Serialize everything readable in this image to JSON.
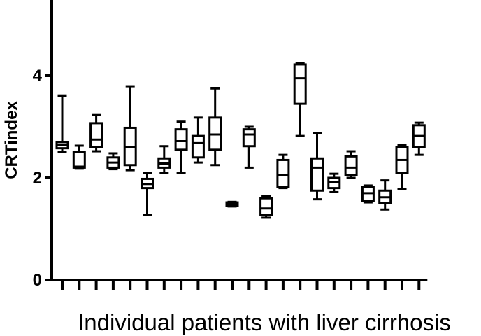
{
  "chart_data": {
    "type": "boxplot",
    "title": "",
    "xlabel": "Individual patients with liver cirrhosis",
    "ylabel": "CRTindex",
    "ylim": [
      0,
      5.5
    ],
    "yticks": [
      "0",
      "2",
      "4"
    ],
    "ytick_values": [
      0,
      2,
      4
    ],
    "grid": false,
    "legend": "none",
    "box_color": "#000000",
    "box_fill": "#ffffff",
    "boxes": [
      {
        "min": 2.5,
        "q1": 2.58,
        "median": 2.64,
        "q3": 2.7,
        "max": 3.6
      },
      {
        "min": 2.18,
        "q1": 2.2,
        "median": 2.22,
        "q3": 2.5,
        "max": 2.63
      },
      {
        "min": 2.52,
        "q1": 2.6,
        "median": 2.75,
        "q3": 3.07,
        "max": 3.23
      },
      {
        "min": 2.17,
        "q1": 2.2,
        "median": 2.3,
        "q3": 2.4,
        "max": 2.48
      },
      {
        "min": 2.15,
        "q1": 2.25,
        "median": 2.6,
        "q3": 2.98,
        "max": 3.78
      },
      {
        "min": 1.27,
        "q1": 1.8,
        "median": 1.88,
        "q3": 1.98,
        "max": 2.1
      },
      {
        "min": 2.1,
        "q1": 2.2,
        "median": 2.28,
        "q3": 2.38,
        "max": 2.62
      },
      {
        "min": 2.1,
        "q1": 2.55,
        "median": 2.72,
        "q3": 2.95,
        "max": 3.1
      },
      {
        "min": 2.3,
        "q1": 2.4,
        "median": 2.68,
        "q3": 2.82,
        "max": 3.18
      },
      {
        "min": 2.25,
        "q1": 2.55,
        "median": 2.85,
        "q3": 3.18,
        "max": 3.75
      },
      {
        "min": 1.44,
        "q1": 1.45,
        "median": 1.48,
        "q3": 1.52,
        "max": 1.53
      },
      {
        "min": 2.2,
        "q1": 2.62,
        "median": 2.85,
        "q3": 2.95,
        "max": 3.0
      },
      {
        "min": 1.22,
        "q1": 1.28,
        "median": 1.4,
        "q3": 1.6,
        "max": 1.65
      },
      {
        "min": 1.8,
        "q1": 1.82,
        "median": 2.05,
        "q3": 2.35,
        "max": 2.45
      },
      {
        "min": 2.82,
        "q1": 3.45,
        "median": 3.95,
        "q3": 4.22,
        "max": 4.25
      },
      {
        "min": 1.58,
        "q1": 1.75,
        "median": 2.2,
        "q3": 2.38,
        "max": 2.88
      },
      {
        "min": 1.72,
        "q1": 1.8,
        "median": 1.92,
        "q3": 2.0,
        "max": 2.08
      },
      {
        "min": 2.0,
        "q1": 2.05,
        "median": 2.2,
        "q3": 2.42,
        "max": 2.52
      },
      {
        "min": 1.52,
        "q1": 1.55,
        "median": 1.7,
        "q3": 1.82,
        "max": 1.85
      },
      {
        "min": 1.38,
        "q1": 1.5,
        "median": 1.62,
        "q3": 1.75,
        "max": 1.95
      },
      {
        "min": 1.78,
        "q1": 2.1,
        "median": 2.35,
        "q3": 2.6,
        "max": 2.65
      },
      {
        "min": 2.45,
        "q1": 2.6,
        "median": 2.82,
        "q3": 3.03,
        "max": 3.08
      }
    ]
  }
}
